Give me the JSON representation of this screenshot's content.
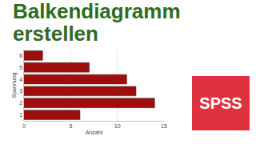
{
  "chart_data": {
    "type": "bar",
    "title": "Balkendiagramm erstellen",
    "orientation": "horizontal",
    "categories": [
      "1",
      "2",
      "3",
      "4",
      "5",
      "6"
    ],
    "values": [
      6,
      14,
      12,
      11,
      7,
      2
    ],
    "color": "#a00d0d",
    "x_label": "Anzahl",
    "y_label": "Spannung",
    "xlim": [
      0,
      15
    ],
    "xticks": [
      0,
      5,
      10,
      15
    ],
    "grid": true,
    "annotations": [
      "SPSS"
    ]
  }
}
